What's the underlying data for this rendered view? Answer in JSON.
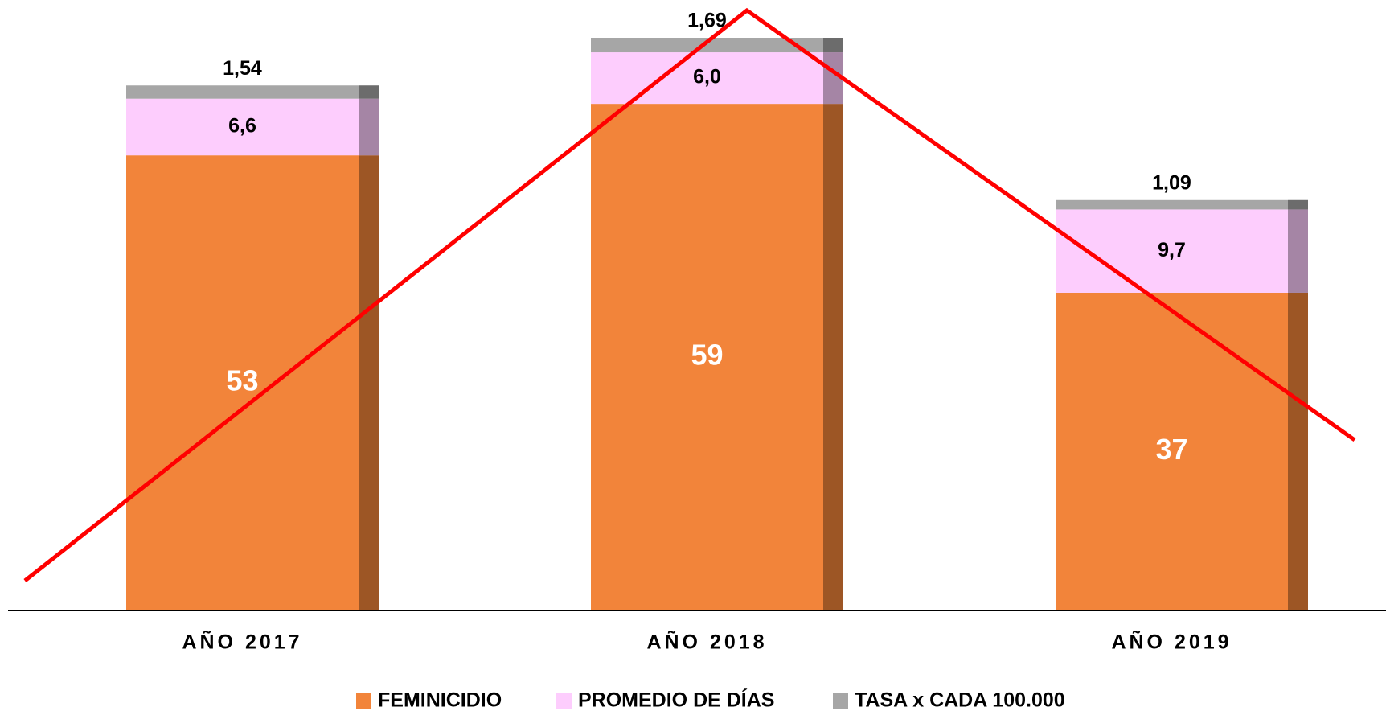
{
  "chart_data": {
    "type": "stacked_bar",
    "categories": [
      "AÑO 2017",
      "AÑO 2018",
      "AÑO 2019"
    ],
    "series": [
      {
        "name": "FEMINICIDIO",
        "color": "#f2843a",
        "values": [
          53,
          59,
          37
        ]
      },
      {
        "name": "PROMEDIO DE DÍAS",
        "color": "#fdcdfd",
        "values": [
          6.6,
          6.0,
          9.7
        ],
        "value_labels": [
          "6,6",
          "6,0",
          "9,7"
        ]
      },
      {
        "name": "TASA x CADA 100.000",
        "color": "#a6a6a6",
        "values": [
          1.54,
          1.69,
          1.09
        ],
        "value_labels": [
          "1,54",
          "1,69",
          "1,09"
        ]
      }
    ],
    "legend": "bottom"
  }
}
